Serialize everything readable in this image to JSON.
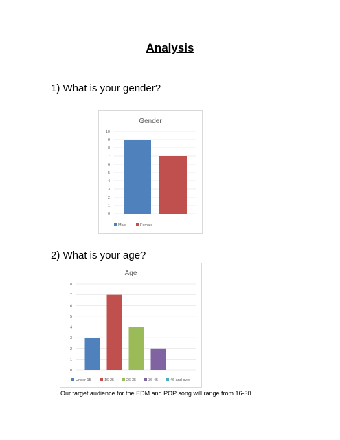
{
  "page": {
    "title": "Analysis",
    "footnote": "Our target audience for the EDM and POP song will range from 16-30."
  },
  "questions": [
    {
      "label": "1) What is your gender?"
    },
    {
      "label": "2) What is your age?"
    }
  ],
  "chart_data": [
    {
      "type": "bar",
      "title": "Gender",
      "categories": [
        ""
      ],
      "ylim": [
        0,
        10
      ],
      "yticks": [
        0,
        1,
        2,
        3,
        4,
        5,
        6,
        7,
        8,
        9,
        10
      ],
      "grid": true,
      "legend": "bottom",
      "series": [
        {
          "name": "Male",
          "values": [
            9
          ],
          "color": "#4f81bd"
        },
        {
          "name": "Female",
          "values": [
            7
          ],
          "color": "#c0504d"
        }
      ]
    },
    {
      "type": "bar",
      "title": "Age",
      "categories": [
        ""
      ],
      "ylim": [
        0,
        8
      ],
      "yticks": [
        0,
        1,
        2,
        3,
        4,
        5,
        6,
        7,
        8
      ],
      "grid": true,
      "legend": "bottom",
      "series": [
        {
          "name": "Under 15",
          "values": [
            3
          ],
          "color": "#4f81bd"
        },
        {
          "name": "16-25",
          "values": [
            7
          ],
          "color": "#c0504d"
        },
        {
          "name": "26-35",
          "values": [
            4
          ],
          "color": "#9bbb59"
        },
        {
          "name": "36-45",
          "values": [
            2
          ],
          "color": "#8064a2"
        },
        {
          "name": "46 and over",
          "values": [
            0
          ],
          "color": "#4bacc6"
        }
      ]
    }
  ]
}
